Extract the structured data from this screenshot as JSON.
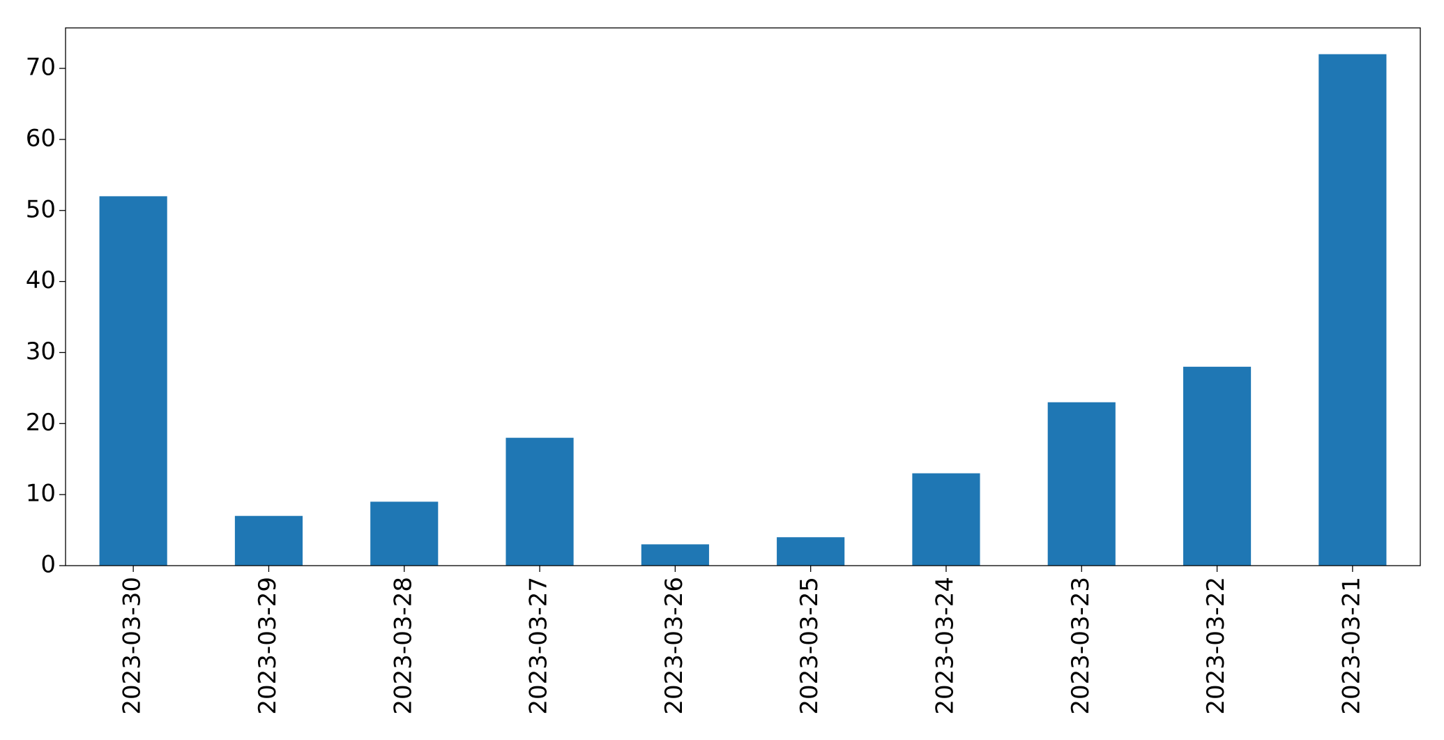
{
  "chart_data": {
    "type": "bar",
    "categories": [
      "2023-03-30",
      "2023-03-29",
      "2023-03-28",
      "2023-03-27",
      "2023-03-26",
      "2023-03-25",
      "2023-03-24",
      "2023-03-23",
      "2023-03-22",
      "2023-03-21"
    ],
    "values": [
      52,
      7,
      9,
      18,
      3,
      4,
      13,
      23,
      28,
      72
    ],
    "color": "#1f77b4",
    "ylim": [
      0,
      75.7
    ],
    "yticks": [
      0,
      10,
      20,
      30,
      40,
      50,
      60,
      70
    ],
    "grid": false
  }
}
